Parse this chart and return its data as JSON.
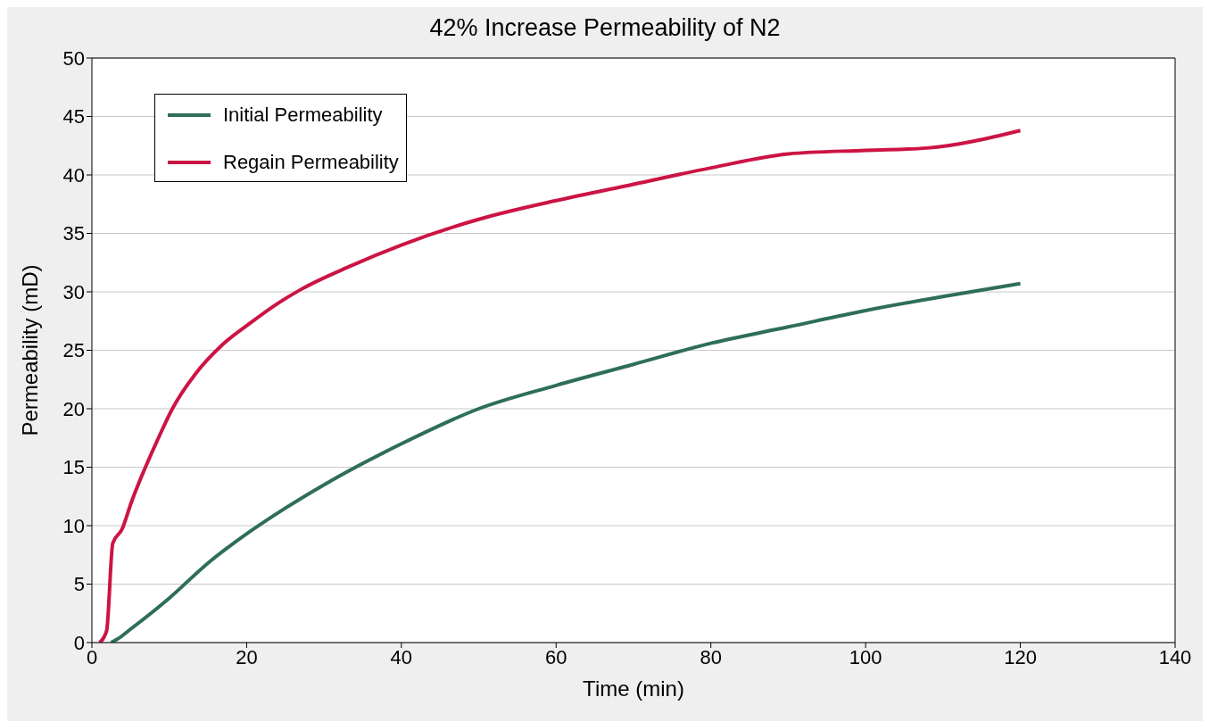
{
  "chart_data": {
    "type": "line",
    "title": "42% Increase Permeability of N2",
    "xlabel": "Time (min)",
    "ylabel": "Permeability (mD)",
    "xlim": [
      0,
      140
    ],
    "xticks": [
      0,
      20,
      40,
      60,
      80,
      100,
      120,
      140
    ],
    "ylim": [
      0,
      50
    ],
    "yticks": [
      0,
      5,
      10,
      15,
      20,
      25,
      30,
      35,
      40,
      45,
      50
    ],
    "grid": "y",
    "legend": "top left",
    "marker": "none",
    "line_style": "solid",
    "series": [
      {
        "name": "Initial Permeability",
        "color": "#2e6e5a",
        "x": [
          2.5,
          3.3,
          5.1,
          10,
          15,
          20,
          25,
          30,
          40,
          50,
          60,
          70,
          80,
          90,
          100,
          110,
          120
        ],
        "values": [
          0,
          0.3,
          1.2,
          3.8,
          6.8,
          9.3,
          11.5,
          13.5,
          17,
          20,
          22,
          23.8,
          25.6,
          27,
          28.4,
          29.6,
          30.7
        ]
      },
      {
        "name": "Regain Permeability",
        "color": "#cc1444",
        "x": [
          1,
          1.9,
          2.7,
          3.9,
          5.1,
          8.6,
          10.4,
          13.4,
          16.9,
          20.4,
          24,
          27,
          33.4,
          40,
          50,
          60,
          70,
          80,
          90,
          100,
          107.9,
          120
        ],
        "values": [
          0,
          1,
          8.5,
          9.7,
          12,
          17.5,
          20,
          23,
          25.5,
          27.3,
          29,
          30.2,
          32.2,
          34,
          36.2,
          37.8,
          39.2,
          40.6,
          41.8,
          42.1,
          42.3,
          43.8
        ]
      }
    ]
  }
}
